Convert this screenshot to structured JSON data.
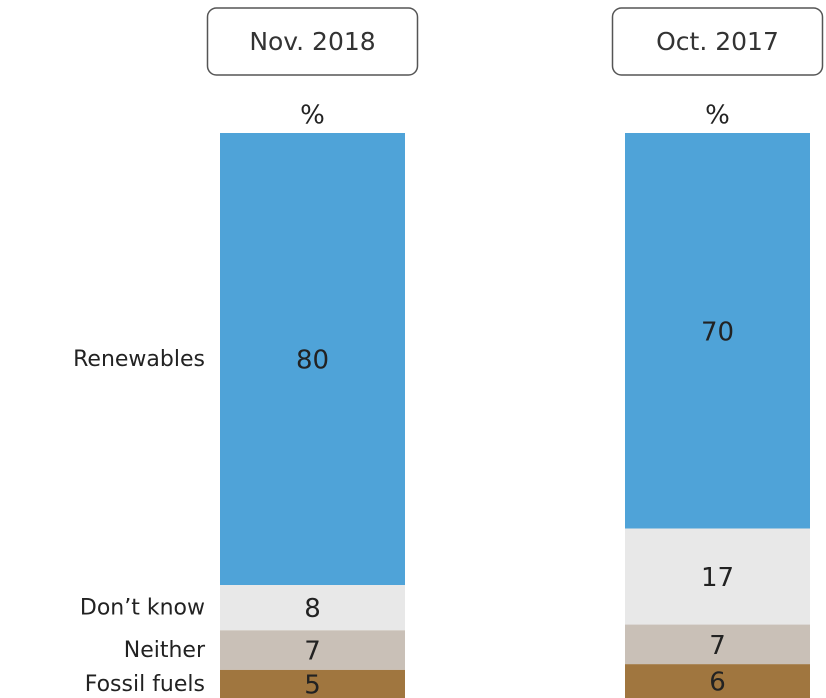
{
  "chart_data": {
    "type": "stacked-bar",
    "categories": [
      "Nov. 2018",
      "Oct. 2017"
    ],
    "unit_label": "%",
    "series": [
      {
        "name": "Fossil fuels",
        "color": "#a0763f",
        "values": [
          5,
          6
        ]
      },
      {
        "name": "Neither",
        "color": "#c9c0b7",
        "values": [
          7,
          7
        ]
      },
      {
        "name": "Don’t know",
        "color": "#e8e8e8",
        "values": [
          8,
          17
        ]
      },
      {
        "name": "Renewables",
        "color": "#4fa3d8",
        "values": [
          80,
          70
        ]
      }
    ]
  }
}
